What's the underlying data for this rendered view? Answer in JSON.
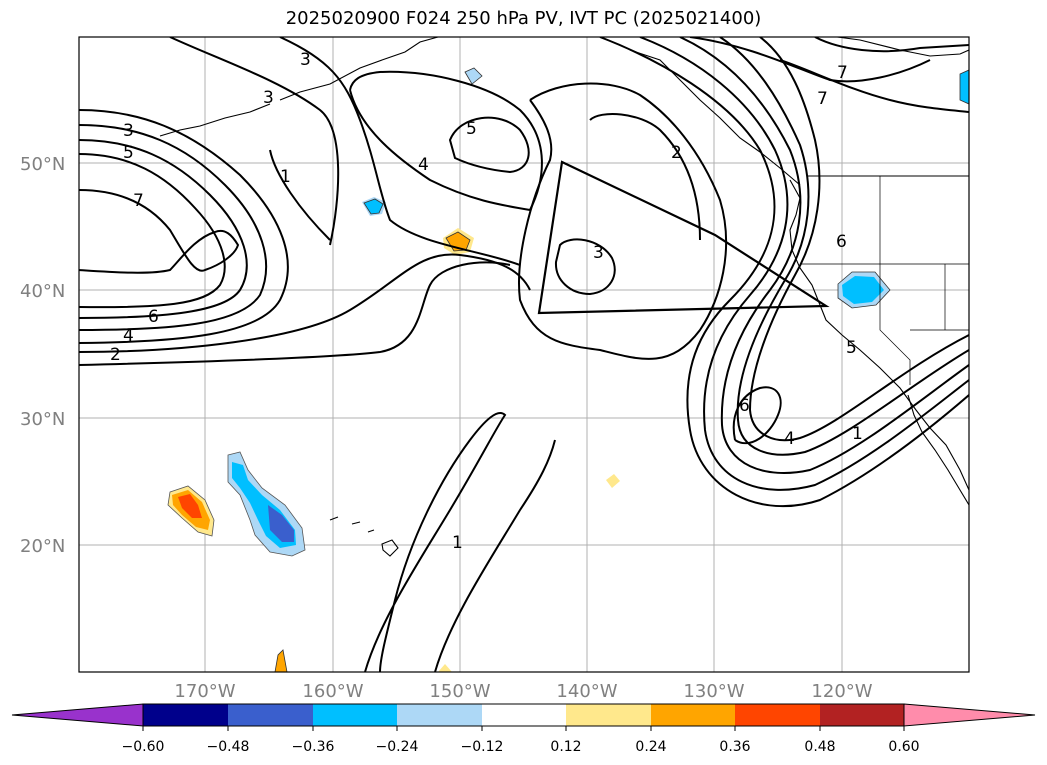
{
  "title": "2025020900 F024 250 hPa PV, IVT PC (2025021400)",
  "map": {
    "lat_labels": [
      "50°N",
      "40°N",
      "30°N",
      "20°N"
    ],
    "lon_labels": [
      "170°W",
      "160°W",
      "150°W",
      "140°W",
      "130°W",
      "120°W"
    ],
    "contour_labels": [
      "3",
      "3",
      "3",
      "5",
      "7",
      "6",
      "4",
      "2",
      "1",
      "4",
      "5",
      "3",
      "2",
      "7",
      "7",
      "6",
      "5",
      "6",
      "4",
      "1",
      "1"
    ],
    "grid": true
  },
  "colorbar": {
    "ticks": [
      "−0.60",
      "−0.48",
      "−0.36",
      "−0.24",
      "−0.12",
      "0.12",
      "0.24",
      "0.36",
      "0.48",
      "0.60"
    ],
    "colors": [
      "#9932cc",
      "#00008b",
      "#3a5fcd",
      "#00bfff",
      "#add8f6",
      "#ffffff",
      "#ffe88c",
      "#ffa500",
      "#ff4500",
      "#b22222",
      "#ff8cab"
    ]
  }
}
